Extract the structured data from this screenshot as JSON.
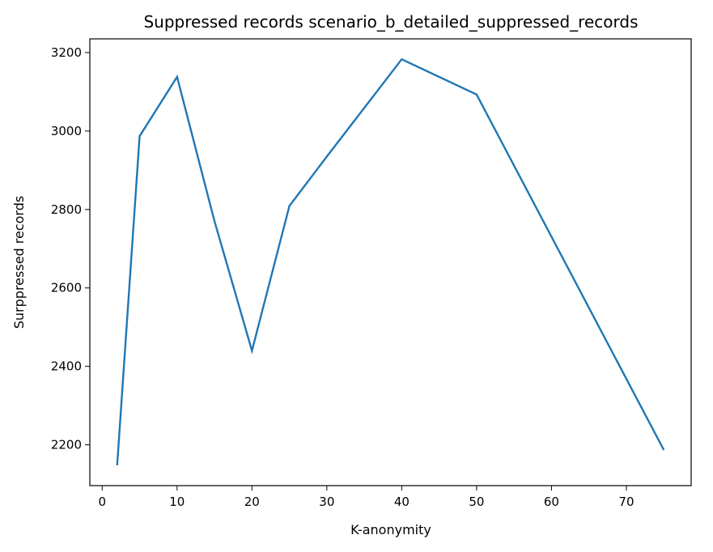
{
  "chart_data": {
    "type": "line",
    "title": "Suppressed records scenario_b_detailed_suppressed_records",
    "xlabel": "K-anonymity",
    "ylabel": "Surppressed records",
    "x": [
      2,
      5,
      10,
      15,
      20,
      25,
      30,
      40,
      50,
      75
    ],
    "series": [
      {
        "values": [
          2148,
          2987,
          3138,
          2770,
          2440,
          2809,
          2935,
          3183,
          3093,
          2187
        ],
        "color": "#1f77b4"
      }
    ],
    "xlim": [
      -1.65,
      78.65
    ],
    "ylim": [
      2096,
      3235
    ],
    "xticks": [
      0,
      10,
      20,
      30,
      40,
      50,
      60,
      70
    ],
    "yticks": [
      2200,
      2400,
      2600,
      2800,
      3000,
      3200
    ],
    "grid": false,
    "legend": "none"
  }
}
